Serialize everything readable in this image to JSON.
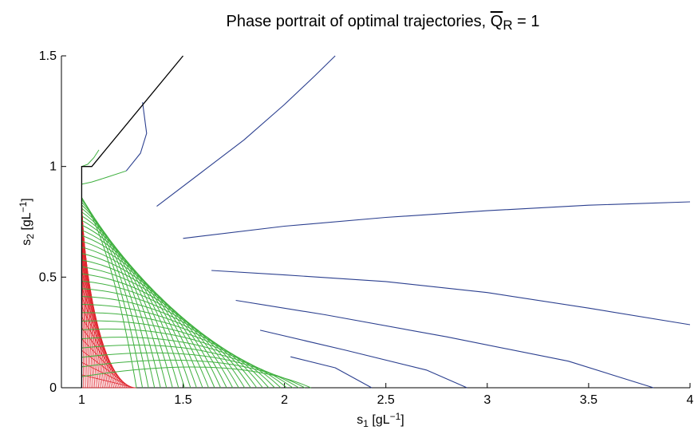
{
  "chart_data": {
    "type": "line",
    "title": {
      "main": "Phase portrait of optimal trajectories, ",
      "symbol": "Q",
      "subscript": "R",
      "suffix": " = 1"
    },
    "xlabel": {
      "base": "s",
      "sub": "1",
      "unit_open": " [gL",
      "sup": "−1",
      "unit_close": "]"
    },
    "ylabel": {
      "base": "s",
      "sub": "2",
      "unit_open": " [gL",
      "sup": "−1",
      "unit_close": "]"
    },
    "xlim": [
      0.9,
      4
    ],
    "ylim": [
      0,
      1.5
    ],
    "xticks": [
      {
        "v": 1,
        "label": "1"
      },
      {
        "v": 1.5,
        "label": "1.5"
      },
      {
        "v": 2,
        "label": "2"
      },
      {
        "v": 2.5,
        "label": "2.5"
      },
      {
        "v": 3,
        "label": "3"
      },
      {
        "v": 3.5,
        "label": "3.5"
      },
      {
        "v": 4,
        "label": "4"
      }
    ],
    "yticks": [
      {
        "v": 0,
        "label": "0"
      },
      {
        "v": 0.5,
        "label": "0.5"
      },
      {
        "v": 1,
        "label": "1"
      },
      {
        "v": 1.5,
        "label": "1.5"
      }
    ],
    "grid": false,
    "colors": {
      "boundary": "#000000",
      "blue": "#2b3f8f",
      "green": "#3fb03f",
      "red": "#e0262f"
    },
    "boundary": [
      [
        1,
        0
      ],
      [
        1,
        1
      ],
      [
        1.05,
        1
      ],
      [
        1.5,
        1.5
      ]
    ],
    "blue_curves": [
      [
        [
          1.37,
          0.82
        ],
        [
          1.6,
          0.98
        ],
        [
          1.8,
          1.12
        ],
        [
          2.0,
          1.28
        ],
        [
          2.15,
          1.41
        ],
        [
          2.25,
          1.5
        ]
      ],
      [
        [
          1.5,
          0.675
        ],
        [
          2.0,
          0.73
        ],
        [
          2.5,
          0.77
        ],
        [
          3.0,
          0.8
        ],
        [
          3.5,
          0.825
        ],
        [
          4.0,
          0.84
        ]
      ],
      [
        [
          1.64,
          0.53
        ],
        [
          2.0,
          0.51
        ],
        [
          2.5,
          0.48
        ],
        [
          3.0,
          0.43
        ],
        [
          3.5,
          0.36
        ],
        [
          4.0,
          0.285
        ]
      ],
      [
        [
          1.76,
          0.395
        ],
        [
          2.2,
          0.33
        ],
        [
          2.8,
          0.23
        ],
        [
          3.4,
          0.12
        ],
        [
          3.82,
          0.0
        ]
      ],
      [
        [
          1.88,
          0.26
        ],
        [
          2.3,
          0.17
        ],
        [
          2.7,
          0.08
        ],
        [
          2.9,
          0.0
        ]
      ],
      [
        [
          2.03,
          0.14
        ],
        [
          2.25,
          0.09
        ],
        [
          2.43,
          0.0
        ]
      ],
      [
        [
          1.22,
          0.98
        ],
        [
          1.29,
          1.06
        ],
        [
          1.32,
          1.15
        ],
        [
          1.3,
          1.29
        ]
      ]
    ],
    "green_fan": {
      "count": 30,
      "start_top": [
        1.0,
        0.86
      ],
      "start_bottom": [
        1.27,
        0.0
      ],
      "end_top": [
        1.37,
        0.82
      ],
      "end_bottom": [
        2.13,
        0.0
      ]
    },
    "green_curves": [
      [
        [
          1.0,
          1.0
        ],
        [
          1.03,
          1.01
        ],
        [
          1.06,
          1.04
        ],
        [
          1.085,
          1.075
        ]
      ],
      [
        [
          1.0,
          0.92
        ],
        [
          1.05,
          0.93
        ],
        [
          1.12,
          0.95
        ],
        [
          1.22,
          0.98
        ]
      ]
    ],
    "red_fan": {
      "count": 30,
      "start_top": [
        1.0,
        0.86
      ],
      "start_bottom": [
        1.0,
        0.0
      ],
      "end_top": [
        1.0,
        0.86
      ],
      "end_bottom": [
        1.27,
        0.0
      ]
    }
  }
}
